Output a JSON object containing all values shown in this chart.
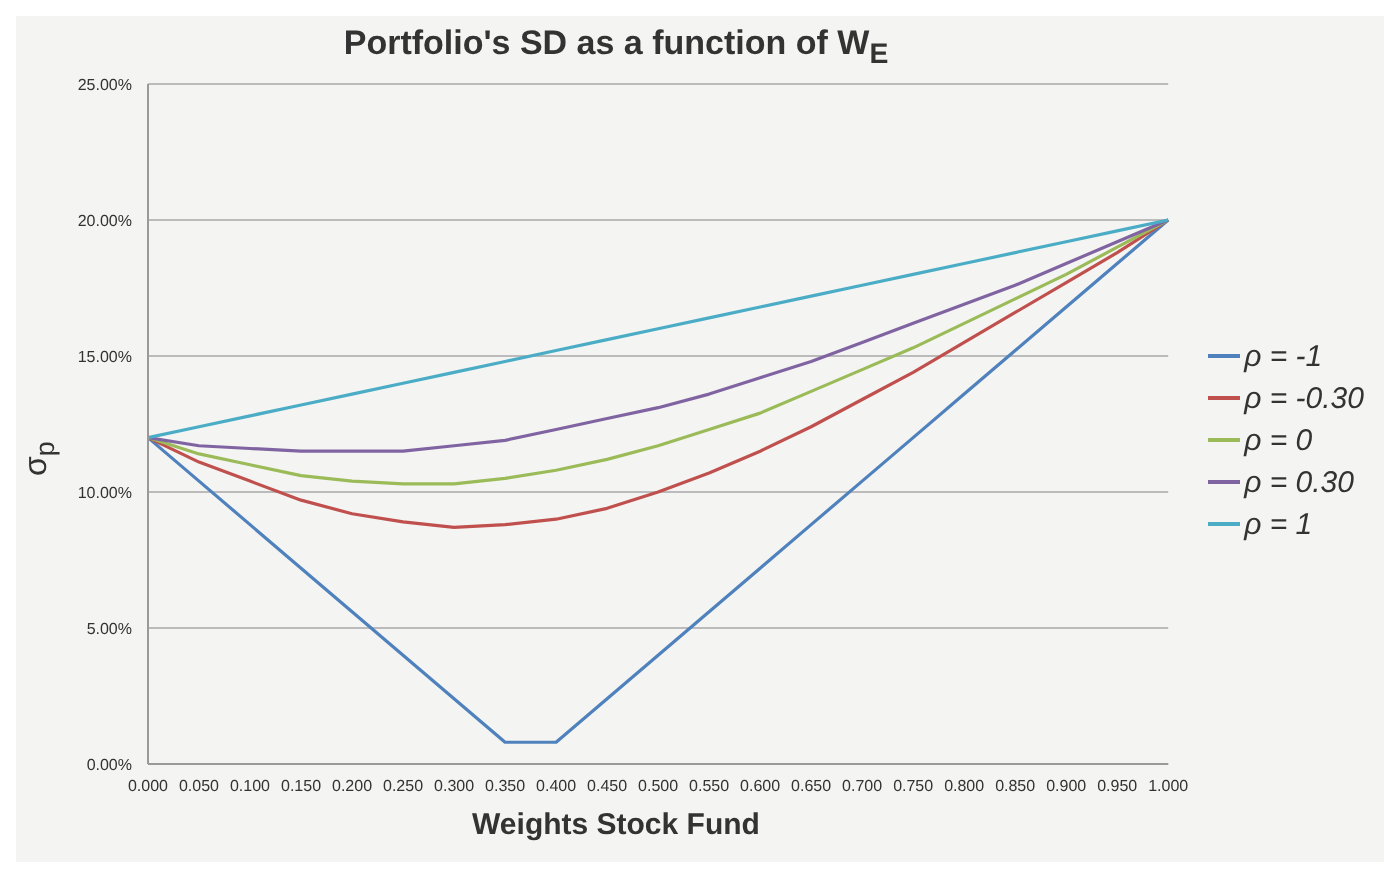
{
  "chart_data": {
    "type": "line",
    "title": "Portfolio's SD as a function of W$_{E}$",
    "xlabel": "Weights Stock Fund",
    "ylabel": "σ$_{p}$",
    "categories": [
      "0.000",
      "0.050",
      "0.100",
      "0.150",
      "0.200",
      "0.250",
      "0.300",
      "0.350",
      "0.400",
      "0.450",
      "0.500",
      "0.550",
      "0.600",
      "0.650",
      "0.700",
      "0.750",
      "0.800",
      "0.850",
      "0.900",
      "0.950",
      "1.000"
    ],
    "series": [
      {
        "name": "ρ = -1",
        "color": "#4f81bd",
        "values": [
          12,
          10.4,
          8.8,
          7.2,
          5.6,
          4,
          2.4,
          0.8,
          0.8,
          2.4,
          4,
          5.6,
          7.2,
          8.8,
          10.4,
          12,
          13.6,
          15.2,
          16.8,
          18.4,
          20
        ]
      },
      {
        "name": "ρ = -0.30",
        "color": "#c0504d",
        "values": [
          12,
          11.1,
          10.4,
          9.7,
          9.2,
          8.9,
          8.7,
          8.8,
          9.0,
          9.4,
          10,
          10.7,
          11.5,
          12.4,
          13.4,
          14.4,
          15.5,
          16.6,
          17.7,
          18.8,
          20
        ]
      },
      {
        "name": "ρ = 0",
        "color": "#9bbb59",
        "values": [
          12,
          11.4,
          11.0,
          10.6,
          10.4,
          10.3,
          10.3,
          10.5,
          10.8,
          11.2,
          11.7,
          12.3,
          12.9,
          13.7,
          14.5,
          15.3,
          16.2,
          17.1,
          18.0,
          19.0,
          20
        ]
      },
      {
        "name": "ρ = 0.30",
        "color": "#8064a2",
        "values": [
          12,
          11.7,
          11.6,
          11.5,
          11.5,
          11.5,
          11.7,
          11.9,
          12.3,
          12.7,
          13.1,
          13.6,
          14.2,
          14.8,
          15.5,
          16.2,
          16.9,
          17.6,
          18.4,
          19.2,
          20
        ]
      },
      {
        "name": "ρ = 1",
        "color": "#4bacc6",
        "values": [
          12,
          12.4,
          12.8,
          13.2,
          13.6,
          14,
          14.4,
          14.8,
          15.2,
          15.6,
          16,
          16.4,
          16.8,
          17.2,
          17.6,
          18,
          18.4,
          18.8,
          19.2,
          19.6,
          20
        ]
      }
    ],
    "ylim": [
      0,
      25
    ],
    "yticks": [
      {
        "value": 0,
        "label": "0.00%"
      },
      {
        "value": 5,
        "label": "5.00%"
      },
      {
        "value": 10,
        "label": "10.00%"
      },
      {
        "value": 15,
        "label": "15.00%"
      },
      {
        "value": 20,
        "label": "20.00%"
      },
      {
        "value": 25,
        "label": "25.00%"
      }
    ],
    "grid": "y",
    "legend": "right",
    "marker": "none",
    "line_style": "solid"
  }
}
